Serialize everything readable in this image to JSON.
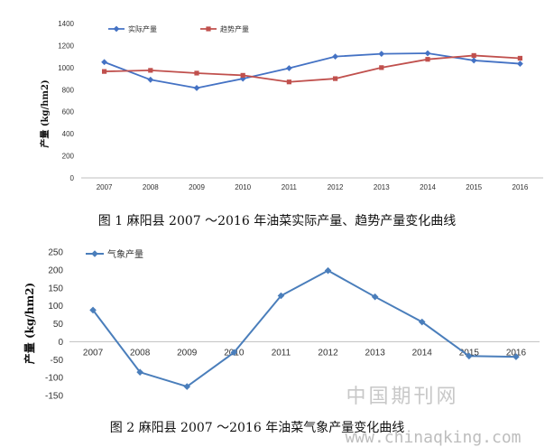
{
  "chart_data": [
    {
      "type": "line",
      "categories": [
        "2007",
        "2008",
        "2009",
        "2010",
        "2011",
        "2012",
        "2013",
        "2014",
        "2015",
        "2016"
      ],
      "series": [
        {
          "name": "实际产量",
          "values": [
            1050,
            890,
            815,
            900,
            995,
            1100,
            1125,
            1130,
            1065,
            1035
          ],
          "color": "#4472c4",
          "marker": "diamond"
        },
        {
          "name": "趋势产量",
          "values": [
            965,
            975,
            950,
            930,
            870,
            900,
            1000,
            1075,
            1110,
            1085
          ],
          "color": "#c0504d",
          "marker": "square"
        }
      ],
      "ylabel": "产量 (kg/hm2)",
      "ylim": [
        0,
        1400
      ],
      "yticks": [
        "0",
        "200",
        "400",
        "600",
        "800",
        "1000",
        "1200",
        "1400"
      ],
      "grid": false,
      "legend": "top-left",
      "caption": "图 1  麻阳县 2007 ～2016 年油菜实际产量、趋势产量变化曲线"
    },
    {
      "type": "line",
      "categories": [
        "2007",
        "2008",
        "2009",
        "2010",
        "2011",
        "2012",
        "2013",
        "2014",
        "2015",
        "2016"
      ],
      "series": [
        {
          "name": "气象产量",
          "values": [
            88,
            -85,
            -125,
            -30,
            128,
            198,
            125,
            55,
            -40,
            -42
          ],
          "color": "#4a7ebb",
          "marker": "diamond"
        }
      ],
      "ylabel": "产量 (kg/hm2)",
      "ylim": [
        -150,
        250
      ],
      "yticks": [
        "-150",
        "-100",
        "-50",
        "0",
        "50",
        "100",
        "150",
        "200",
        "250"
      ],
      "grid": false,
      "legend": "top-left",
      "caption": "图 2  麻阳县 2007 ～2016 年油菜气象产量变化曲线"
    }
  ],
  "watermark": {
    "text_cn": "中国期刊网",
    "text_url": "www.chinaqking.com"
  }
}
